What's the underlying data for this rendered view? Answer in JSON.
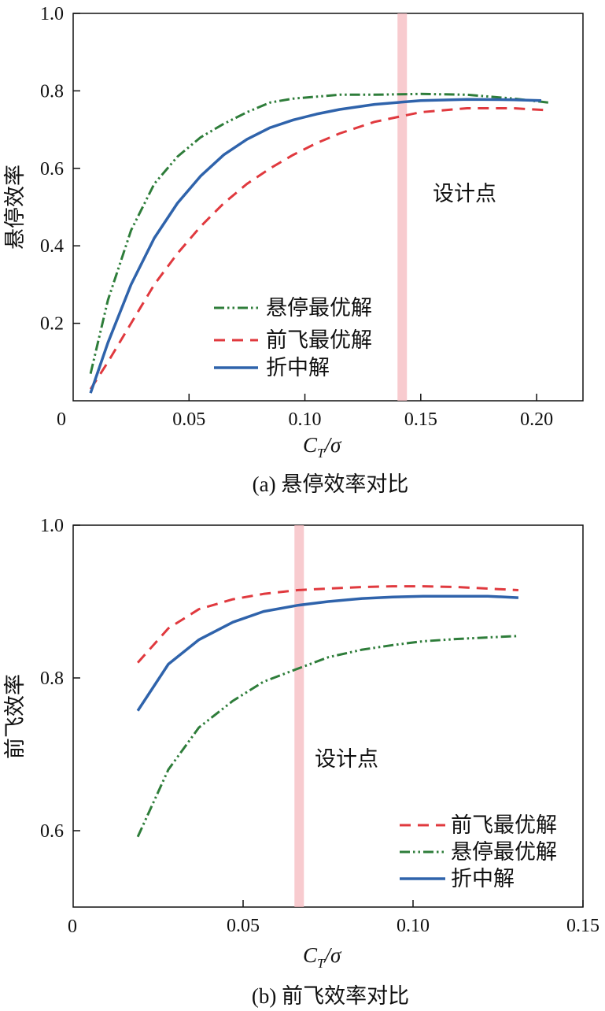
{
  "chart_data": [
    {
      "type": "line",
      "caption": "(a) 悬停效率对比",
      "xlabel_main": "C",
      "xlabel_sub": "T",
      "xlabel_rest": "/σ",
      "ylabel": "悬停效率",
      "xlim": [
        0,
        0.22
      ],
      "ylim": [
        0,
        1.0
      ],
      "xticks": [
        0.05,
        0.1,
        0.15,
        0.2
      ],
      "xtick_labels": [
        "0.05",
        "0.10",
        "0.15",
        "0.20"
      ],
      "yticks": [
        0.2,
        0.4,
        0.6,
        0.8,
        1.0
      ],
      "ytick_labels": [
        "0.2",
        "0.4",
        "0.6",
        "0.8",
        "1.0"
      ],
      "origin_label": "0",
      "design_point": {
        "x": 0.142,
        "label": "设计点"
      },
      "series": [
        {
          "name": "悬停最优解",
          "style": "dashdotdot",
          "color": "#2e7d3a",
          "x": [
            0.0075,
            0.015,
            0.025,
            0.035,
            0.045,
            0.055,
            0.065,
            0.075,
            0.085,
            0.095,
            0.105,
            0.115,
            0.13,
            0.15,
            0.17,
            0.19,
            0.205
          ],
          "y": [
            0.07,
            0.26,
            0.44,
            0.56,
            0.63,
            0.68,
            0.715,
            0.745,
            0.77,
            0.78,
            0.785,
            0.79,
            0.79,
            0.792,
            0.79,
            0.78,
            0.77
          ]
        },
        {
          "name": "前飞最优解",
          "style": "dashed",
          "color": "#e0393e",
          "x": [
            0.0075,
            0.015,
            0.025,
            0.035,
            0.045,
            0.055,
            0.065,
            0.075,
            0.085,
            0.095,
            0.105,
            0.115,
            0.13,
            0.15,
            0.17,
            0.19,
            0.205
          ],
          "y": [
            0.03,
            0.1,
            0.2,
            0.3,
            0.38,
            0.45,
            0.51,
            0.56,
            0.6,
            0.635,
            0.665,
            0.69,
            0.72,
            0.745,
            0.755,
            0.755,
            0.75
          ]
        },
        {
          "name": "折中解",
          "style": "solid",
          "color": "#2f63ab",
          "x": [
            0.0075,
            0.015,
            0.025,
            0.035,
            0.045,
            0.055,
            0.065,
            0.075,
            0.085,
            0.095,
            0.105,
            0.115,
            0.13,
            0.15,
            0.17,
            0.19,
            0.202
          ],
          "y": [
            0.02,
            0.15,
            0.3,
            0.42,
            0.51,
            0.58,
            0.635,
            0.675,
            0.705,
            0.725,
            0.74,
            0.752,
            0.765,
            0.775,
            0.778,
            0.777,
            0.775
          ]
        }
      ],
      "legend_order": [
        "悬停最优解",
        "前飞最优解",
        "折中解"
      ]
    },
    {
      "type": "line",
      "caption": "(b) 前飞效率对比",
      "xlabel_main": "C",
      "xlabel_sub": "T",
      "xlabel_rest": "/σ",
      "ylabel": "前飞效率",
      "xlim": [
        0,
        0.15
      ],
      "ylim": [
        0.5,
        1.0
      ],
      "xticks": [
        0.05,
        0.1,
        0.15
      ],
      "xtick_labels": [
        "0.05",
        "0.10",
        "0.15"
      ],
      "yticks": [
        0.6,
        0.8,
        1.0
      ],
      "ytick_labels": [
        "0.6",
        "0.8",
        "1.0"
      ],
      "origin_label": "0",
      "design_point": {
        "x": 0.0665,
        "label": "设计点"
      },
      "series": [
        {
          "name": "前飞最优解",
          "style": "dashed",
          "color": "#e0393e",
          "x": [
            0.019,
            0.028,
            0.037,
            0.047,
            0.056,
            0.066,
            0.075,
            0.085,
            0.094,
            0.103,
            0.113,
            0.122,
            0.131
          ],
          "y": [
            0.82,
            0.865,
            0.89,
            0.903,
            0.91,
            0.915,
            0.917,
            0.919,
            0.92,
            0.92,
            0.919,
            0.917,
            0.915
          ]
        },
        {
          "name": "悬停最优解",
          "style": "dashdotdot",
          "color": "#2e7d3a",
          "x": [
            0.019,
            0.028,
            0.037,
            0.047,
            0.056,
            0.066,
            0.075,
            0.085,
            0.094,
            0.103,
            0.113,
            0.122,
            0.131
          ],
          "y": [
            0.592,
            0.68,
            0.735,
            0.77,
            0.795,
            0.812,
            0.827,
            0.837,
            0.843,
            0.848,
            0.851,
            0.853,
            0.855
          ]
        },
        {
          "name": "折中解",
          "style": "solid",
          "color": "#2f63ab",
          "x": [
            0.019,
            0.028,
            0.037,
            0.047,
            0.056,
            0.066,
            0.075,
            0.085,
            0.094,
            0.103,
            0.113,
            0.122,
            0.131
          ],
          "y": [
            0.757,
            0.818,
            0.85,
            0.873,
            0.887,
            0.895,
            0.9,
            0.904,
            0.906,
            0.907,
            0.907,
            0.907,
            0.905
          ]
        }
      ],
      "legend_order": [
        "前飞最优解",
        "悬停最优解",
        "折中解"
      ]
    }
  ]
}
